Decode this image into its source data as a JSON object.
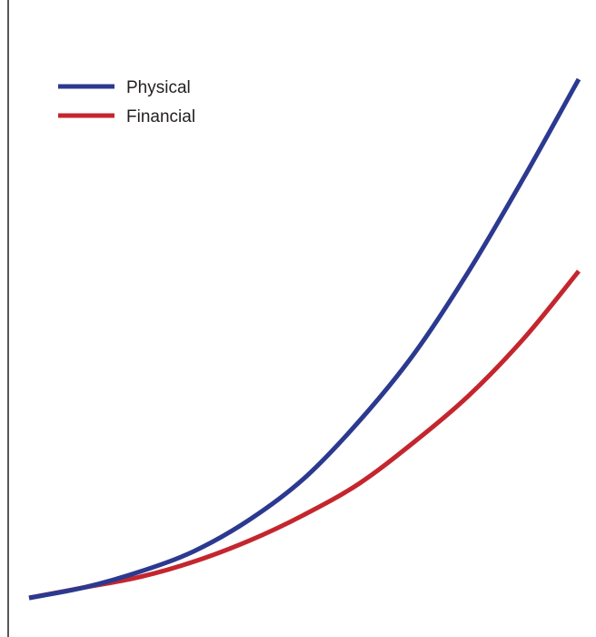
{
  "chart_data": {
    "type": "line",
    "title": "",
    "xlabel": "",
    "ylabel": "",
    "x": [
      0,
      0.1,
      0.2,
      0.3,
      0.4,
      0.5,
      0.6,
      0.7,
      0.8,
      0.9,
      1.0
    ],
    "xlim": [
      0,
      1
    ],
    "ylim": [
      0,
      1
    ],
    "grid": false,
    "legend_position": "top-left",
    "series": [
      {
        "name": "Physical",
        "color": "#2b3990",
        "values": [
          0.0,
          0.02,
          0.05,
          0.09,
          0.15,
          0.23,
          0.34,
          0.47,
          0.63,
          0.81,
          1.0
        ]
      },
      {
        "name": "Financial",
        "color": "#c4262e",
        "values": [
          0.0,
          0.02,
          0.04,
          0.07,
          0.11,
          0.16,
          0.22,
          0.3,
          0.39,
          0.5,
          0.63
        ]
      }
    ]
  }
}
